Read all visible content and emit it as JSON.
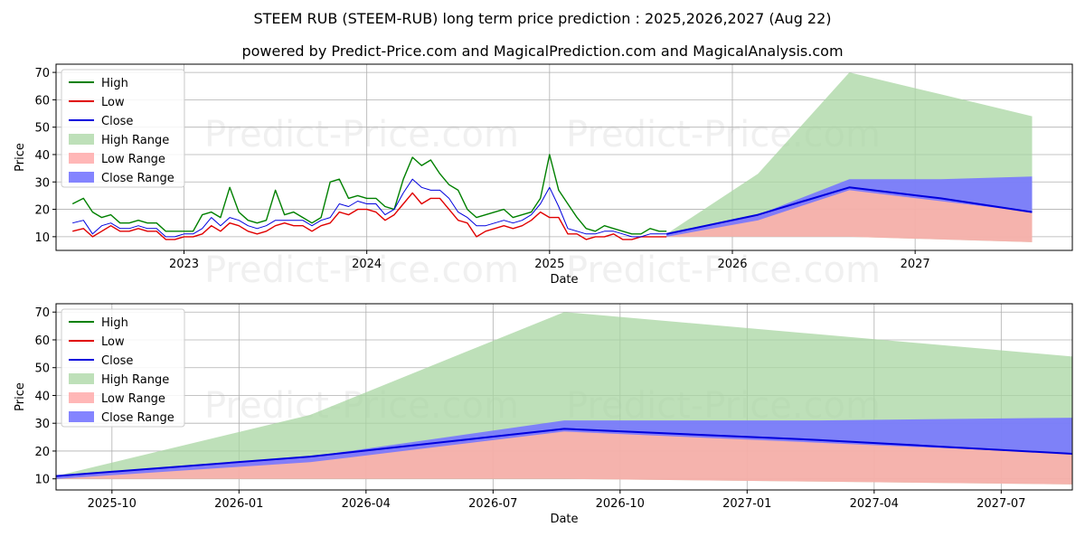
{
  "title_line1": "STEEM RUB (STEEM-RUB) long term price prediction : 2025,2026,2027 (Aug 22)",
  "title_line2": "powered by Predict-Price.com and MagicalPrediction.com and MagicalAnalysis.com",
  "watermark": "Predict-Price.com",
  "colors": {
    "high": "#008000",
    "low": "#e00000",
    "close": "#0000dd",
    "high_range": "#a8d5a2",
    "low_range": "#ffaaaa",
    "close_range": "#7777ff"
  },
  "chart_data": [
    {
      "type": "line",
      "xlabel": "Date",
      "ylabel": "Price",
      "ylim": [
        5,
        73
      ],
      "yticks": [
        10,
        20,
        30,
        40,
        50,
        60,
        70
      ],
      "xlim": [
        2022.3,
        2027.86
      ],
      "xticks": [
        {
          "v": 2023.0,
          "label": "2023"
        },
        {
          "v": 2024.0,
          "label": "2024"
        },
        {
          "v": 2025.0,
          "label": "2025"
        },
        {
          "v": 2026.0,
          "label": "2026"
        },
        {
          "v": 2027.0,
          "label": "2027"
        }
      ],
      "grid": true,
      "legend": "top-left",
      "legend_entries": [
        "High",
        "Low",
        "Close",
        "High Range",
        "Low Range",
        "Close Range"
      ],
      "history": {
        "x": [
          2022.39,
          2022.45,
          2022.5,
          2022.55,
          2022.6,
          2022.65,
          2022.7,
          2022.75,
          2022.8,
          2022.85,
          2022.9,
          2022.95,
          2023.0,
          2023.05,
          2023.1,
          2023.15,
          2023.2,
          2023.25,
          2023.3,
          2023.35,
          2023.4,
          2023.45,
          2023.5,
          2023.55,
          2023.6,
          2023.65,
          2023.7,
          2023.75,
          2023.8,
          2023.85,
          2023.9,
          2023.95,
          2024.0,
          2024.05,
          2024.1,
          2024.15,
          2024.2,
          2024.25,
          2024.3,
          2024.35,
          2024.4,
          2024.45,
          2024.5,
          2024.55,
          2024.6,
          2024.65,
          2024.7,
          2024.75,
          2024.8,
          2024.85,
          2024.9,
          2024.95,
          2025.0,
          2025.05,
          2025.1,
          2025.15,
          2025.2,
          2025.25,
          2025.3,
          2025.35,
          2025.4,
          2025.45,
          2025.5,
          2025.55,
          2025.6,
          2025.64
        ],
        "high": [
          22,
          24,
          19,
          17,
          18,
          15,
          15,
          16,
          15,
          15,
          12,
          12,
          12,
          12,
          18,
          19,
          17,
          28,
          19,
          16,
          15,
          16,
          27,
          18,
          19,
          17,
          15,
          17,
          30,
          31,
          24,
          25,
          24,
          24,
          21,
          20,
          31,
          39,
          36,
          38,
          33,
          29,
          27,
          20,
          17,
          18,
          19,
          20,
          17,
          18,
          19,
          24,
          40,
          27,
          22,
          17,
          13,
          12,
          14,
          13,
          12,
          11,
          11,
          13,
          12,
          12
        ],
        "low": [
          12,
          13,
          10,
          12,
          14,
          12,
          12,
          13,
          12,
          12,
          9,
          9,
          10,
          10,
          11,
          14,
          12,
          15,
          14,
          12,
          11,
          12,
          14,
          15,
          14,
          14,
          12,
          14,
          15,
          19,
          18,
          20,
          20,
          19,
          16,
          18,
          22,
          26,
          22,
          24,
          24,
          20,
          16,
          15,
          10,
          12,
          13,
          14,
          13,
          14,
          16,
          19,
          17,
          17,
          11,
          11,
          9,
          10,
          10,
          11,
          9,
          9,
          10,
          10,
          10,
          10
        ],
        "close": [
          15,
          16,
          11,
          14,
          15,
          13,
          13,
          14,
          13,
          13,
          10,
          10,
          11,
          11,
          13,
          17,
          14,
          17,
          16,
          14,
          13,
          14,
          16,
          16,
          16,
          16,
          14,
          16,
          17,
          22,
          21,
          23,
          22,
          22,
          18,
          20,
          26,
          31,
          28,
          27,
          27,
          24,
          19,
          17,
          14,
          14,
          15,
          16,
          15,
          16,
          18,
          22,
          28,
          21,
          13,
          12,
          11,
          11,
          12,
          12,
          11,
          10,
          10,
          11,
          11,
          11
        ]
      },
      "forecast": {
        "x": [
          2025.64,
          2026.14,
          2026.64,
          2027.14,
          2027.64
        ],
        "high": [
          11,
          33,
          70,
          62,
          54
        ],
        "low": [
          10,
          10,
          10,
          9,
          8
        ],
        "close": [
          11,
          18,
          28,
          24,
          19
        ],
        "close_hi": [
          11,
          18,
          31,
          31,
          32
        ],
        "close_lo": [
          10,
          16,
          27,
          23,
          19
        ]
      }
    },
    {
      "type": "line",
      "xlabel": "Date",
      "ylabel": "Price",
      "ylim": [
        6,
        73
      ],
      "yticks": [
        10,
        20,
        30,
        40,
        50,
        60,
        70
      ],
      "xlim": [
        2025.64,
        2027.64
      ],
      "xticks": [
        {
          "v": 2025.75,
          "label": "2025-10"
        },
        {
          "v": 2026.0,
          "label": "2026-01"
        },
        {
          "v": 2026.25,
          "label": "2026-04"
        },
        {
          "v": 2026.5,
          "label": "2026-07"
        },
        {
          "v": 2026.75,
          "label": "2026-10"
        },
        {
          "v": 2027.0,
          "label": "2027-01"
        },
        {
          "v": 2027.25,
          "label": "2027-04"
        },
        {
          "v": 2027.5,
          "label": "2027-07"
        }
      ],
      "grid": true,
      "legend": "top-left",
      "legend_entries": [
        "High",
        "Low",
        "Close",
        "High Range",
        "Low Range",
        "Close Range"
      ],
      "forecast": {
        "x": [
          2025.64,
          2026.14,
          2026.64,
          2027.14,
          2027.64
        ],
        "high": [
          11,
          33,
          70,
          62,
          54
        ],
        "low": [
          10,
          10,
          10,
          9,
          8
        ],
        "close": [
          11,
          18,
          28,
          24,
          19
        ],
        "close_hi": [
          11,
          18,
          31,
          31,
          32
        ],
        "close_lo": [
          10,
          16,
          27,
          23,
          19
        ]
      }
    }
  ]
}
